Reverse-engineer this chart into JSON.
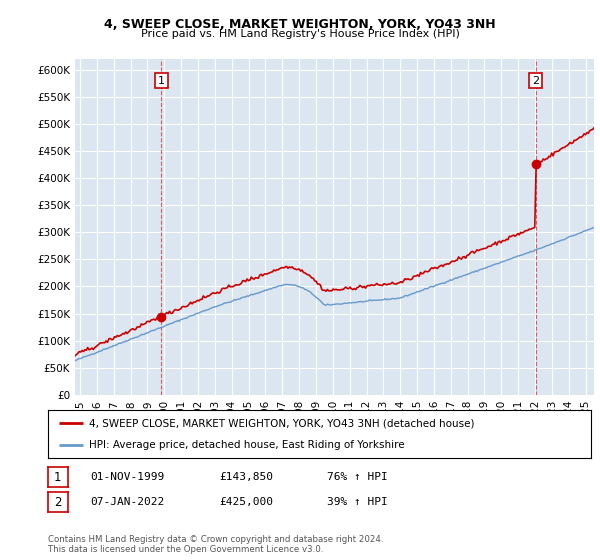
{
  "title1": "4, SWEEP CLOSE, MARKET WEIGHTON, YORK, YO43 3NH",
  "title2": "Price paid vs. HM Land Registry's House Price Index (HPI)",
  "ylabel_ticks": [
    "£0",
    "£50K",
    "£100K",
    "£150K",
    "£200K",
    "£250K",
    "£300K",
    "£350K",
    "£400K",
    "£450K",
    "£500K",
    "£550K",
    "£600K"
  ],
  "ytick_values": [
    0,
    50000,
    100000,
    150000,
    200000,
    250000,
    300000,
    350000,
    400000,
    450000,
    500000,
    550000,
    600000
  ],
  "ylim": [
    0,
    620000
  ],
  "xlim_start": 1994.7,
  "xlim_end": 2025.5,
  "sale1_x": 1999.83,
  "sale1_y": 143850,
  "sale2_x": 2022.03,
  "sale2_y": 425000,
  "legend_line1": "4, SWEEP CLOSE, MARKET WEIGHTON, YORK, YO43 3NH (detached house)",
  "legend_line2": "HPI: Average price, detached house, East Riding of Yorkshire",
  "footnote1": "Contains HM Land Registry data © Crown copyright and database right 2024.",
  "footnote2": "This data is licensed under the Open Government Licence v3.0.",
  "annot1_label": "1",
  "annot1_date": "01-NOV-1999",
  "annot1_price": "£143,850",
  "annot1_hpi": "76% ↑ HPI",
  "annot2_label": "2",
  "annot2_date": "07-JAN-2022",
  "annot2_price": "£425,000",
  "annot2_hpi": "39% ↑ HPI",
  "red_color": "#cc0000",
  "blue_color": "#6699cc",
  "bg_color": "#dce6f1",
  "grid_color": "#ffffff",
  "xticks": [
    1995,
    1996,
    1997,
    1998,
    1999,
    2000,
    2001,
    2002,
    2003,
    2004,
    2005,
    2006,
    2007,
    2008,
    2009,
    2010,
    2011,
    2012,
    2013,
    2014,
    2015,
    2016,
    2017,
    2018,
    2019,
    2020,
    2021,
    2022,
    2023,
    2024,
    2025
  ]
}
